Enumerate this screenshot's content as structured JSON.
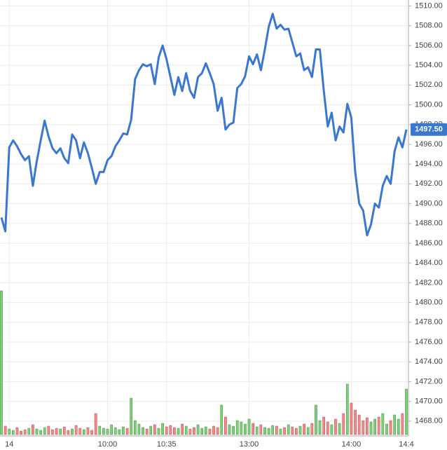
{
  "chart_data": {
    "type": "line",
    "color": "#3a78d0",
    "up_color": "#7fcf7a",
    "down_color": "#f0898a",
    "categories": [
      null,
      null,
      "14",
      null,
      null,
      null,
      null,
      null,
      null,
      null,
      null,
      null,
      null,
      null,
      null,
      null,
      null,
      null,
      null,
      null,
      null,
      null,
      null,
      null,
      null,
      null,
      null,
      "10:00",
      null,
      null,
      null,
      null,
      null,
      null,
      null,
      null,
      null,
      null,
      null,
      null,
      null,
      null,
      "10:35",
      null,
      null,
      null,
      null,
      null,
      null,
      null,
      null,
      null,
      null,
      null,
      null,
      null,
      null,
      null,
      null,
      null,
      null,
      null,
      null,
      "13:00",
      null,
      null,
      null,
      null,
      null,
      null,
      null,
      null,
      null,
      null,
      null,
      null,
      null,
      null,
      null,
      null,
      null,
      null,
      null,
      null,
      null,
      null,
      null,
      null,
      null,
      "14:00",
      null,
      null,
      null,
      null,
      null,
      null,
      null,
      null,
      null,
      null,
      null,
      null,
      null,
      "14:4"
    ],
    "values": [
      1488.6,
      1487.2,
      1495.7,
      1496.4,
      1495.8,
      1495,
      1494.4,
      1494.8,
      1491.8,
      1494.3,
      1496.4,
      1498.4,
      1496.8,
      1495.6,
      1495.1,
      1495.6,
      1494.6,
      1494.1,
      1497,
      1496.4,
      1494.6,
      1496.2,
      1495.1,
      1493.6,
      1492,
      1493.2,
      1493.2,
      1494.4,
      1494.8,
      1495.8,
      1496.4,
      1497.1,
      1497,
      1498.5,
      1502.6,
      1503.5,
      1504.1,
      1503.9,
      1504.1,
      1502.1,
      1504.8,
      1506,
      1504.6,
      1502.8,
      1501,
      1502.8,
      1501.4,
      1503.2,
      1501.4,
      1500.7,
      1502.8,
      1503.2,
      1504.2,
      1503.2,
      1502.1,
      1499.4,
      1500.7,
      1497.5,
      1498,
      1498.2,
      1501.7,
      1502.1,
      1502.9,
      1504.9,
      1504.1,
      1505.1,
      1503.5,
      1505.6,
      1507.9,
      1509.2,
      1507.7,
      1508.1,
      1507.6,
      1507.7,
      1506.3,
      1504.9,
      1505.2,
      1503.5,
      1503.8,
      1502.8,
      1505.6,
      1505.6,
      1501.4,
      1497.8,
      1499.2,
      1496.4,
      1497.8,
      1497.2,
      1500.1,
      1498.7,
      1493.2,
      1490,
      1489.3,
      1486.8,
      1487.9,
      1490,
      1489.6,
      1491.8,
      1492.8,
      1492,
      1495.3,
      1496.7,
      1495.7,
      1497.5
    ],
    "volume": [
      205,
      12,
      8,
      6,
      10,
      5,
      7,
      9,
      14,
      8,
      6,
      10,
      12,
      7,
      9,
      8,
      11,
      6,
      8,
      13,
      9,
      7,
      10,
      6,
      30,
      12,
      9,
      8,
      14,
      10,
      7,
      11,
      9,
      52,
      20,
      15,
      10,
      8,
      12,
      14,
      9,
      16,
      11,
      13,
      10,
      9,
      15,
      12,
      8,
      10,
      14,
      9,
      11,
      8,
      12,
      10,
      42,
      25,
      14,
      12,
      20,
      18,
      15,
      22,
      16,
      11,
      14,
      10,
      9,
      13,
      12,
      8,
      10,
      14,
      11,
      9,
      12,
      15,
      10,
      16,
      42,
      20,
      25,
      18,
      14,
      22,
      16,
      30,
      72,
      45,
      35,
      28,
      20,
      24,
      18,
      22,
      25,
      30,
      15,
      20,
      28,
      22,
      30,
      65
    ],
    "last_label": "1497.50",
    "ylim": [
      1466.5,
      1510.6
    ],
    "yticks": [
      {
        "value": 1468,
        "label": "1468.00"
      },
      {
        "value": 1470,
        "label": "1470.00"
      },
      {
        "value": 1472,
        "label": "1472.00"
      },
      {
        "value": 1474,
        "label": "1474.00"
      },
      {
        "value": 1476,
        "label": "1476.00"
      },
      {
        "value": 1478,
        "label": "1478.00"
      },
      {
        "value": 1480,
        "label": "1480.00"
      },
      {
        "value": 1482,
        "label": "1482.00"
      },
      {
        "value": 1484,
        "label": "1484.00"
      },
      {
        "value": 1486,
        "label": "1486.00"
      },
      {
        "value": 1488,
        "label": "1488.00"
      },
      {
        "value": 1490,
        "label": "1490.00"
      },
      {
        "value": 1492,
        "label": "1492.00"
      },
      {
        "value": 1494,
        "label": "1494.00"
      },
      {
        "value": 1496,
        "label": "1496.00"
      },
      {
        "value": 1498,
        "label": "1498.00"
      },
      {
        "value": 1500,
        "label": "1500.00"
      },
      {
        "value": 1502,
        "label": "1502.00"
      },
      {
        "value": 1504,
        "label": "1504.00"
      },
      {
        "value": 1506,
        "label": "1506.00"
      },
      {
        "value": 1508,
        "label": "1508.00"
      },
      {
        "value": 1510,
        "label": "1510.00"
      }
    ],
    "grid": true
  }
}
